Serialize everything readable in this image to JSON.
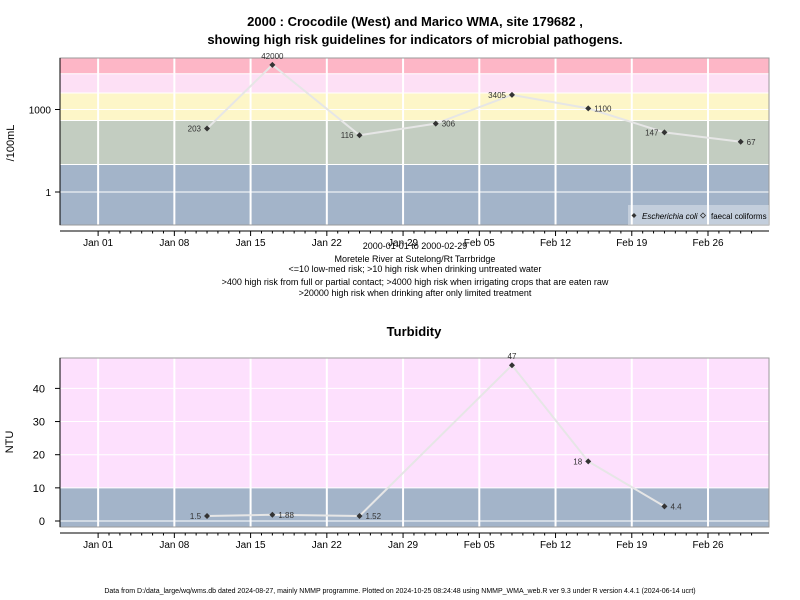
{
  "chart1": {
    "title_line1": "2000 : Crocodile (West) and Marico WMA, site 179682 ,",
    "title_line2": "showing high risk guidelines for indicators of microbial pathogens.",
    "ylabel": "/100mL",
    "ytick_labels": [
      "1",
      "1000"
    ],
    "xtick_labels": [
      "Jan 01",
      "Jan 08",
      "Jan 15",
      "Jan 22",
      "Jan 29",
      "Feb 05",
      "Feb 12",
      "Feb 19",
      "Feb 26"
    ],
    "caption_lines": [
      "2000-01-01 to 2000-02-29",
      "Moretele River at Sutelong/Rt Tarrbridge",
      "<=10 low-med risk; >10 high risk when drinking untreated water",
      ">400 high risk from full or partial contact; >4000 high risk when irrigating crops that are eaten raw",
      ">20000 high risk when drinking after only limited treatment"
    ],
    "legend": {
      "ecoli": "Escherichia coli",
      "faecal": "faecal coliforms"
    },
    "colors": {
      "band_low": "#a3b4c9",
      "band_10_400": "#c3cdc1",
      "band_400_4000": "#fdf6c8",
      "band_4000_20000": "#fde0f5",
      "band_high": "#fdb6c6",
      "line": "#e6e6e6",
      "point": "#333333"
    }
  },
  "chart2": {
    "title": "Turbidity",
    "ylabel": "NTU",
    "ytick_labels": [
      "0",
      "10",
      "20",
      "30",
      "40"
    ],
    "xtick_labels": [
      "Jan 01",
      "Jan 08",
      "Jan 15",
      "Jan 22",
      "Jan 29",
      "Feb 05",
      "Feb 12",
      "Feb 19",
      "Feb 26"
    ],
    "colors": {
      "band_low": "#a3b4c9",
      "band_high": "#fde0fd",
      "line": "#e6e6e6",
      "point": "#333333"
    }
  },
  "chart_data": [
    {
      "type": "line",
      "title": "2000 : Crocodile (West) and Marico WMA, site 179682 , showing high risk guidelines for indicators of microbial pathogens.",
      "ylabel": "/100mL",
      "yscale": "log",
      "x_range": [
        "2000-01-01",
        "2000-02-29"
      ],
      "guideline_levels": [
        10,
        400,
        4000,
        20000
      ],
      "series": [
        {
          "name": "Escherichia coli",
          "points": [
            {
              "x": "2000-01-11",
              "y": 203,
              "label": "203"
            },
            {
              "x": "2000-01-17",
              "y": 42000,
              "label": "42000"
            },
            {
              "x": "2000-01-25",
              "y": 116,
              "label": "116"
            },
            {
              "x": "2000-02-01",
              "y": 306,
              "label": "306"
            },
            {
              "x": "2000-02-08",
              "y": 3405,
              "label": "3405"
            },
            {
              "x": "2000-02-15",
              "y": 1100,
              "label": "1100"
            },
            {
              "x": "2000-02-22",
              "y": 147,
              "label": "147"
            },
            {
              "x": "2000-02-29",
              "y": 67,
              "label": "67"
            }
          ]
        }
      ],
      "legend_position": "bottom-right"
    },
    {
      "type": "line",
      "title": "Turbidity",
      "ylabel": "NTU",
      "ylim": [
        0,
        49
      ],
      "x_range": [
        "2000-01-01",
        "2000-02-29"
      ],
      "guideline_levels": [
        10
      ],
      "series": [
        {
          "points": [
            {
              "x": "2000-01-11",
              "y": 1.5,
              "label": "1.5"
            },
            {
              "x": "2000-01-17",
              "y": 1.88,
              "label": "1.88"
            },
            {
              "x": "2000-01-25",
              "y": 1.52,
              "label": "1.52"
            },
            {
              "x": "2000-02-08",
              "y": 47,
              "label": "47"
            },
            {
              "x": "2000-02-15",
              "y": 18,
              "label": "18"
            },
            {
              "x": "2000-02-22",
              "y": 4.4,
              "label": "4.4"
            }
          ]
        }
      ]
    }
  ],
  "footer": "Data from D:/data_large/wq/wms.db dated 2024-08-27, mainly NMMP programme. Plotted on 2024-10-25 08:24:48 using NMMP_WMA_web.R ver 9.3 under R version 4.4.1 (2024-06-14 ucrt)"
}
